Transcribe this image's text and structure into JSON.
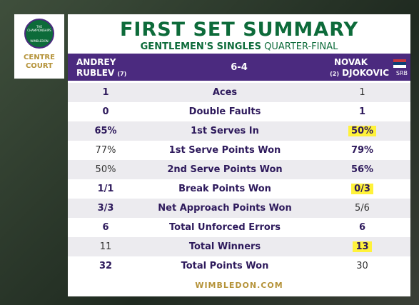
{
  "logo": {
    "top": "THE CHAMPIONSHIPS",
    "bottom": "WIMBLEDON"
  },
  "court": [
    "CENTRE",
    "COURT"
  ],
  "header": {
    "title": "FIRST SET SUMMARY",
    "subtitle": "GENTLEMEN'S SINGLES",
    "round": "QUARTER-FINAL"
  },
  "players": {
    "left": {
      "first": "ANDREY",
      "last": "RUBLEV",
      "seed": "(7)"
    },
    "score": "6-4",
    "right": {
      "first": "NOVAK",
      "seed": "(2)",
      "last": "DJOKOVIC",
      "country": "SRB"
    }
  },
  "table": {
    "rows": [
      [
        "1",
        "Aces",
        "1"
      ],
      [
        "0",
        "Double Faults",
        "1"
      ],
      [
        "65%",
        "1st Serves In",
        "50%"
      ],
      [
        "77%",
        "1st Serve Points Won",
        "79%"
      ],
      [
        "50%",
        "2nd Serve Points Won",
        "56%"
      ],
      [
        "1/1",
        "Break Points Won",
        "0/3"
      ],
      [
        "3/3",
        "Net Approach Points Won",
        "5/6"
      ],
      [
        "6",
        "Total Unforced Errors",
        "6"
      ],
      [
        "11",
        "Total Winners",
        "13"
      ],
      [
        "32",
        "Total Points Won",
        "30"
      ]
    ]
  },
  "footer": "WIMBLEDON.COM"
}
